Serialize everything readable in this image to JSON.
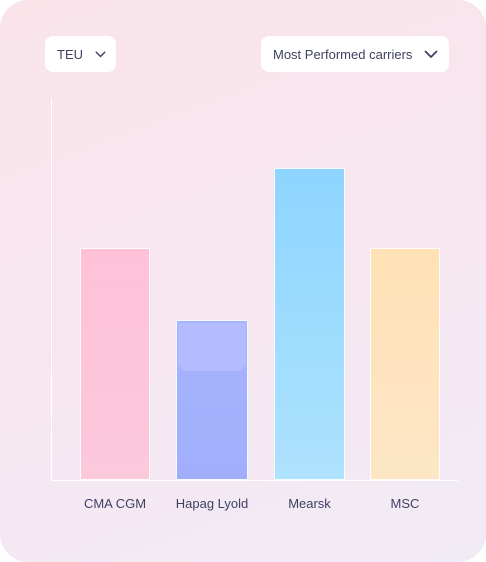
{
  "filters": {
    "unit": {
      "selected": "TEU",
      "icon": "chevron-down-icon"
    },
    "ranking": {
      "selected": "Most Performed carriers",
      "icon": "chevron-down-icon"
    }
  },
  "chart_data": {
    "type": "bar",
    "categories": [
      "CMA CGM",
      "Hapag Lyold",
      "Mearsk",
      "MSC"
    ],
    "values": [
      58,
      40,
      78,
      58
    ],
    "ylim": [
      0,
      100
    ],
    "grid": false,
    "colors": [
      "#ffc1d8",
      "#a6b4ff",
      "#8dd5ff",
      "#ffe1b5"
    ]
  }
}
